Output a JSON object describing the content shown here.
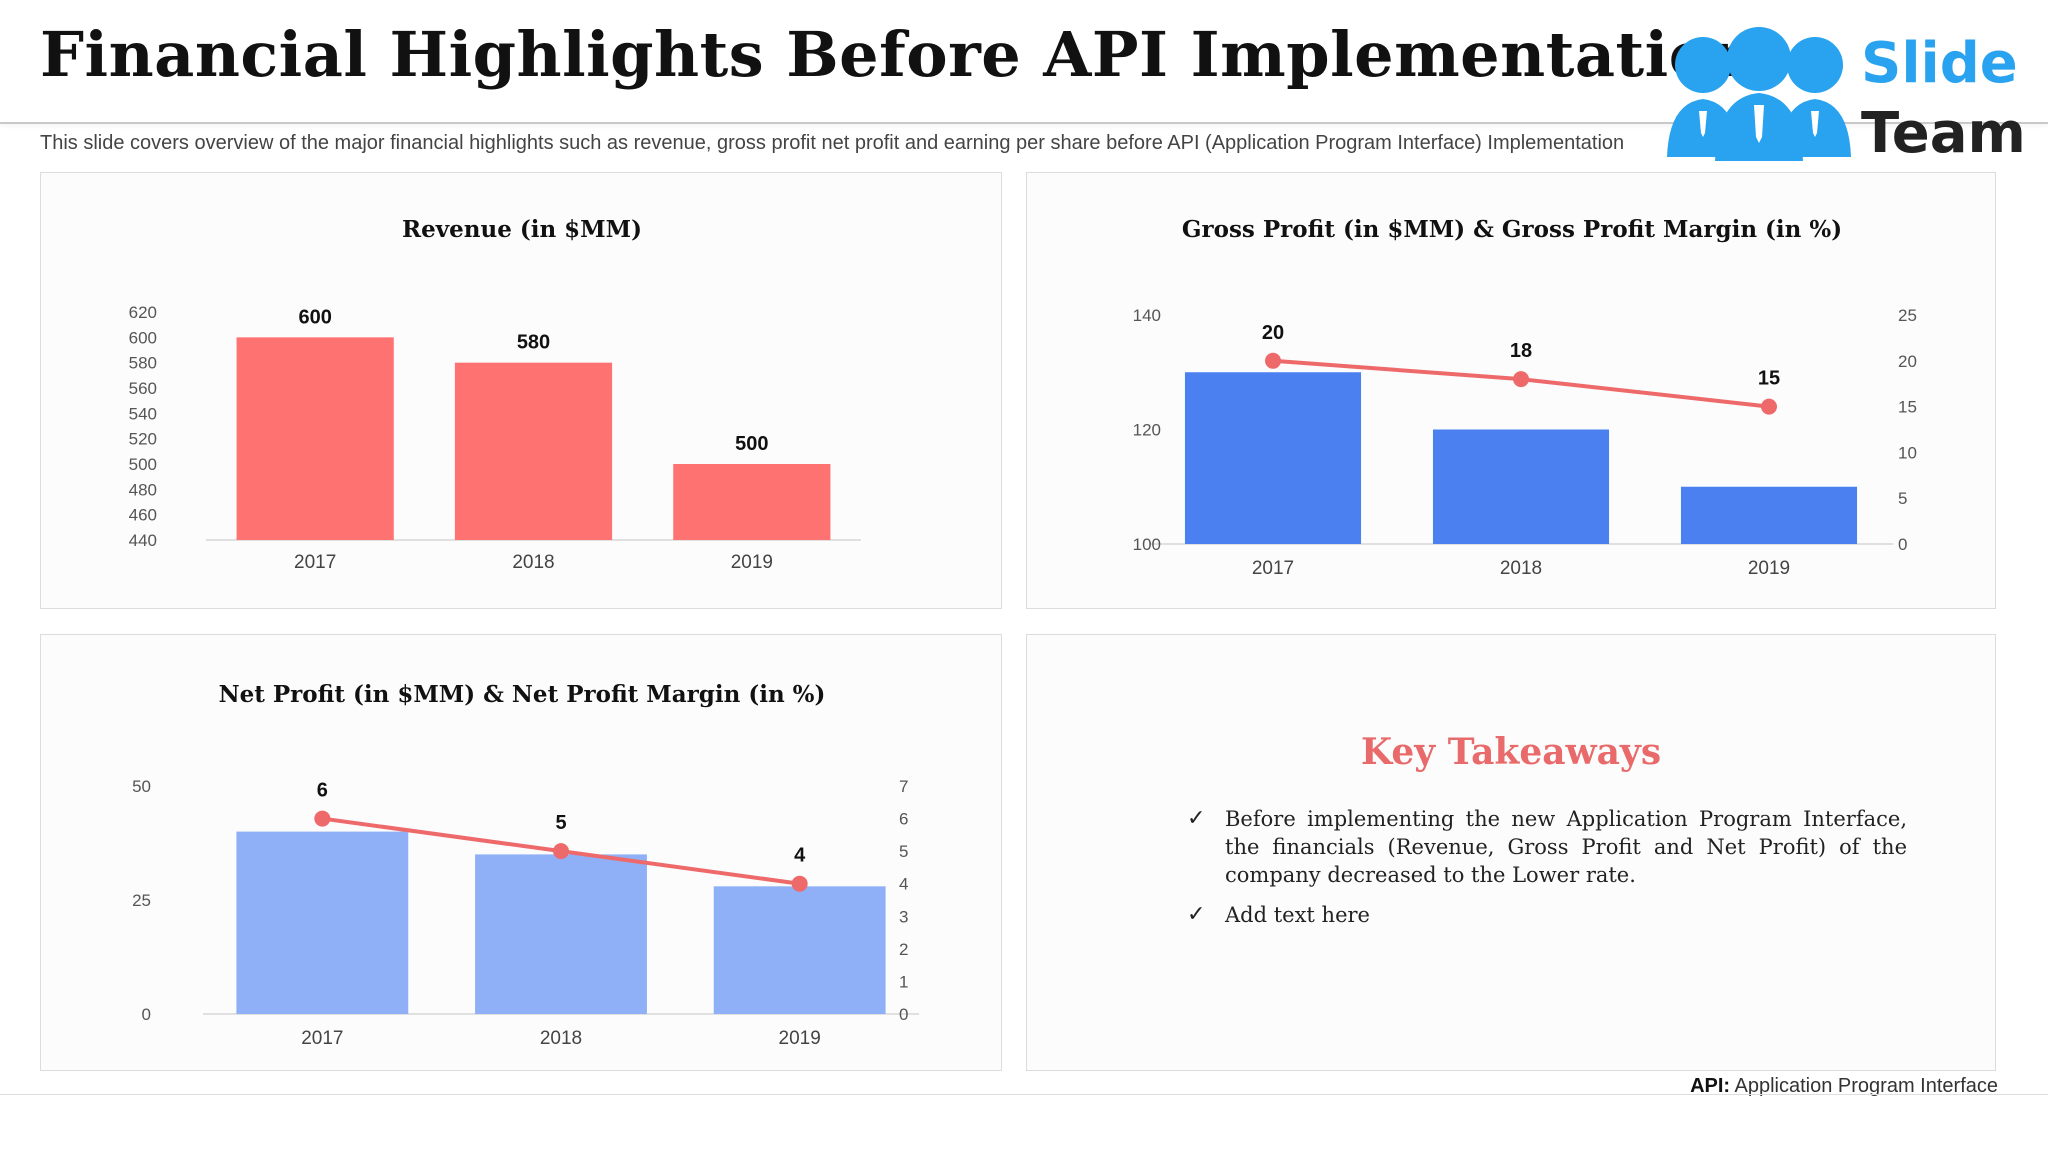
{
  "header": {
    "title": "Financial Highlights Before API Implementation",
    "subtitle": "This slide covers overview of the major financial highlights such as revenue, gross profit net profit and earning per share before API (Application Program Interface) Implementation"
  },
  "logo": {
    "line1": "Slide",
    "line2": "Team",
    "color": "#29a3f0"
  },
  "colors": {
    "revenue_bar": "#ff7272",
    "gross_bar": "#4a80f0",
    "net_bar": "#8fb0f6",
    "line": "#ee6a6a"
  },
  "chart_data": [
    {
      "type": "bar",
      "title": "Revenue (in $MM)",
      "categories": [
        "2017",
        "2018",
        "2019"
      ],
      "values": [
        600,
        580,
        500
      ],
      "ylim": [
        440,
        620
      ],
      "yticks": [
        "620",
        "600",
        "580",
        "560",
        "540",
        "520",
        "500",
        "480",
        "460",
        "440"
      ],
      "data_labels": [
        "600",
        "580",
        "500"
      ],
      "xlabel": "",
      "ylabel": "",
      "grid": false,
      "legend": "none"
    },
    {
      "type": "bar",
      "title": "Gross Profit (in $MM) & Gross Profit Margin (in %)",
      "categories": [
        "2017",
        "2018",
        "2019"
      ],
      "series": [
        {
          "kind": "bar",
          "axis": "left",
          "values": [
            130,
            120,
            110
          ]
        },
        {
          "kind": "line",
          "axis": "right",
          "values": [
            20,
            18,
            15
          ]
        }
      ],
      "ylim_left": [
        100,
        140
      ],
      "ylim_right": [
        0,
        25
      ],
      "yticks_left": [
        "140",
        "120",
        "100"
      ],
      "yticks_right": [
        "25",
        "20",
        "15",
        "10",
        "5",
        "0"
      ],
      "data_labels": [
        "20",
        "18",
        "15"
      ],
      "grid": false,
      "legend": "none"
    },
    {
      "type": "bar",
      "title": "Net Profit (in $MM) & Net Profit Margin (in %)",
      "categories": [
        "2017",
        "2018",
        "2019"
      ],
      "series": [
        {
          "kind": "bar",
          "axis": "left",
          "values": [
            40,
            35,
            28
          ]
        },
        {
          "kind": "line",
          "axis": "right",
          "values": [
            6,
            5,
            4
          ]
        }
      ],
      "ylim_left": [
        0,
        50
      ],
      "ylim_right": [
        0,
        7
      ],
      "yticks_left": [
        "50",
        "25",
        "0"
      ],
      "yticks_right": [
        "7",
        "6",
        "5",
        "4",
        "3",
        "2",
        "1",
        "0"
      ],
      "data_labels": [
        "6",
        "5",
        "4"
      ],
      "grid": false,
      "legend": "none"
    }
  ],
  "takeaways": {
    "title": "Key Takeaways",
    "check": "✓",
    "items": [
      "Before implementing the new Application Program Interface, the financials (Revenue, Gross Profit and Net Profit) of the company decreased to the Lower rate.",
      "Add text here"
    ]
  },
  "footnote": {
    "abbr": "API:",
    "text": "Application Program Interface"
  }
}
